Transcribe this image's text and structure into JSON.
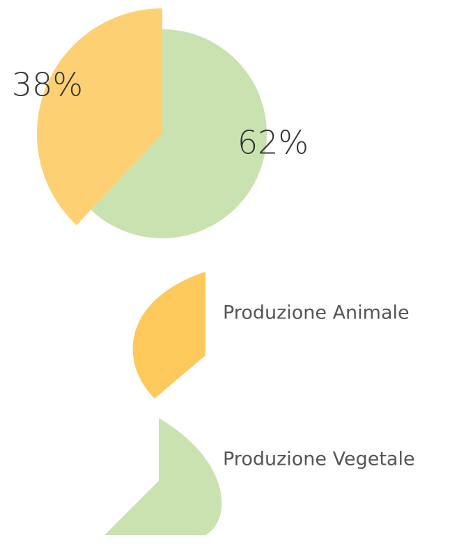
{
  "chart_data": {
    "type": "pie",
    "categories": [
      "Produzione Animale",
      "Produzione Vegetale"
    ],
    "values": [
      38,
      62
    ],
    "value_labels": [
      "38%",
      "62%"
    ],
    "colors": [
      "#fdc95a",
      "#c9e2b0"
    ]
  }
}
